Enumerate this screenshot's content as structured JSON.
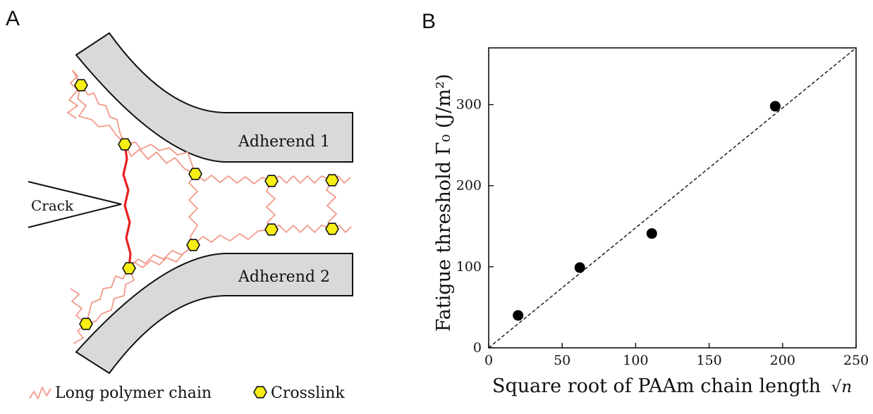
{
  "panel_a": {
    "letter": "A",
    "adherend_1": "Adherend 1",
    "adherend_2": "Adherend 2",
    "crack": "Crack",
    "legend_chain": "Long polymer chain",
    "legend_crosslink": "Crosslink",
    "colors": {
      "chain": "#f29a8a",
      "bridging_chain": "#e8201f",
      "crosslink": "#f6ee14",
      "adherend": "#d9d9d9"
    }
  },
  "panel_b": {
    "letter": "B"
  },
  "chart_data": {
    "type": "scatter",
    "xlabel": "Square root of PAAm chain length",
    "xlabel_symbol": "√n",
    "ylabel": "Fatigue threshold Γ₀ (J/m²)",
    "xlim": [
      0,
      250
    ],
    "ylim": [
      0,
      370
    ],
    "xticks": [
      0,
      50,
      100,
      150,
      200,
      250
    ],
    "yticks": [
      0,
      100,
      200,
      300
    ],
    "x": [
      20,
      62,
      111,
      195
    ],
    "y": [
      40,
      99,
      141,
      298
    ],
    "fit_line": {
      "style": "dashed",
      "x": [
        0,
        250
      ],
      "y": [
        0,
        370
      ]
    },
    "grid": false,
    "legend": "none"
  }
}
